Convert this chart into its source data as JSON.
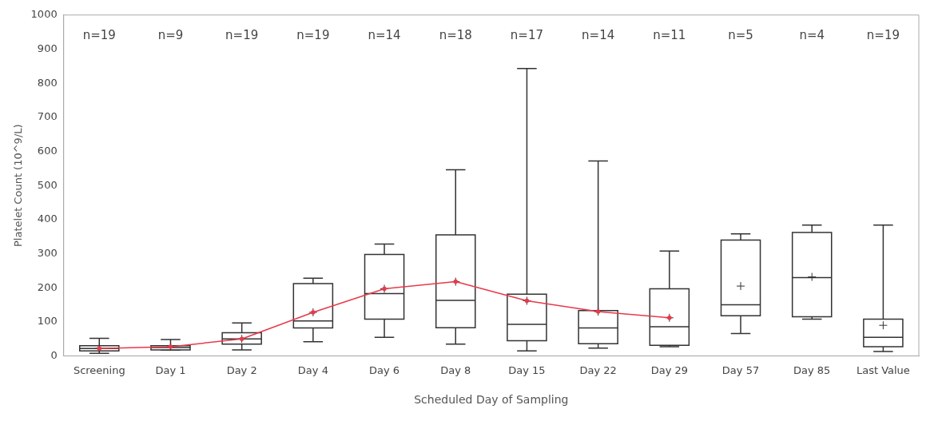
{
  "chart_data": {
    "type": "box",
    "xlabel": "Scheduled Day of Sampling",
    "ylabel": "Platelet Count (10^9/L)",
    "categories": [
      "Screening",
      "Day 1",
      "Day 2",
      "Day 4",
      "Day 6",
      "Day 8",
      "Day 15",
      "Day 22",
      "Day 29",
      "Day 57",
      "Day 85",
      "Last Value"
    ],
    "ylim": [
      0,
      1000
    ],
    "yticks": [
      0,
      100,
      200,
      300,
      400,
      500,
      600,
      700,
      800,
      900,
      1000
    ],
    "series": [
      {
        "type": "box",
        "color": "#333333",
        "boxes": [
          {
            "low": 8,
            "q1": 15,
            "median": 22,
            "q3": 30,
            "high": 52,
            "mean": 22
          },
          {
            "low": 17,
            "q1": 18,
            "median": 25,
            "q3": 30,
            "high": 48,
            "mean": 27
          },
          {
            "low": 18,
            "q1": 35,
            "median": 50,
            "q3": 68,
            "high": 97,
            "mean": 50
          },
          {
            "low": 42,
            "q1": 82,
            "median": 103,
            "q3": 212,
            "high": 228,
            "mean": 128
          },
          {
            "low": 55,
            "q1": 108,
            "median": 183,
            "q3": 298,
            "high": 328,
            "mean": 197
          },
          {
            "low": 35,
            "q1": 83,
            "median": 163,
            "q3": 355,
            "high": 546,
            "mean": 218
          },
          {
            "low": 15,
            "q1": 45,
            "median": 93,
            "q3": 181,
            "high": 843,
            "mean": 162
          },
          {
            "low": 23,
            "q1": 36,
            "median": 82,
            "q3": 133,
            "high": 572,
            "mean": 130
          },
          {
            "low": 27,
            "q1": 31,
            "median": 86,
            "q3": 197,
            "high": 308,
            "mean": 112
          },
          {
            "low": 66,
            "q1": 118,
            "median": 150,
            "q3": 340,
            "high": 358,
            "mean": 205
          },
          {
            "low": 108,
            "q1": 115,
            "median": 230,
            "q3": 362,
            "high": 384,
            "mean": 232
          },
          {
            "low": 13,
            "q1": 27,
            "median": 55,
            "q3": 108,
            "high": 384,
            "mean": 90
          }
        ]
      },
      {
        "type": "line",
        "color": "#e8394a",
        "values": [
          22,
          27,
          50,
          128,
          197,
          218,
          162,
          130,
          112,
          null,
          null,
          null
        ]
      }
    ],
    "annotations": [
      "n=19",
      "n=9",
      "n=19",
      "n=19",
      "n=14",
      "n=18",
      "n=17",
      "n=14",
      "n=11",
      "n=5",
      "n=4",
      "n=19"
    ]
  }
}
